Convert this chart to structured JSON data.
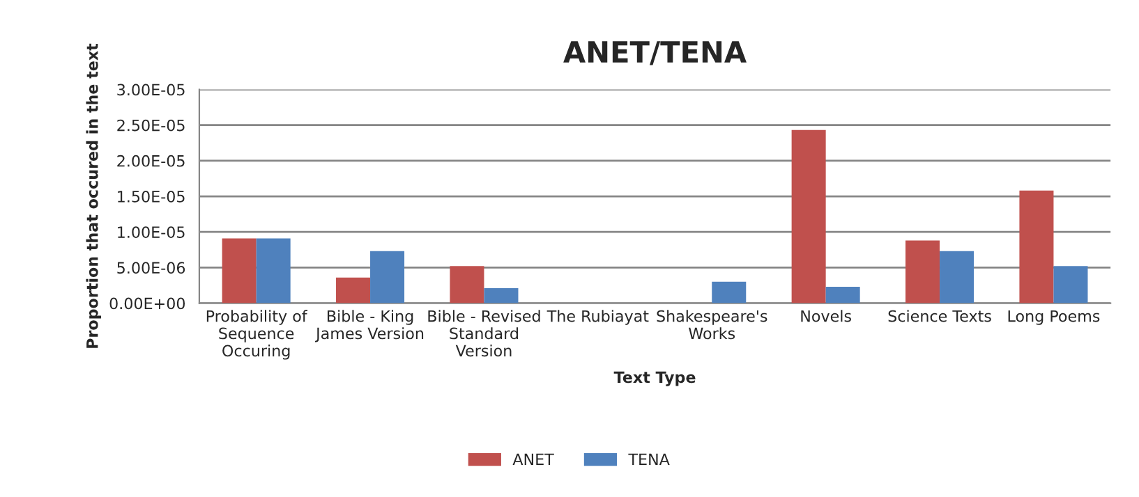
{
  "chart_data": {
    "type": "bar",
    "title": "ANET/TENA",
    "xlabel": "Text Type",
    "ylabel": "Proportion that occured in the text",
    "categories": [
      "Probability of\nSequence\nOccuring",
      "Bible - King\nJames Version",
      "Bible - Revised\nStandard\nVersion",
      "The Rubiayat",
      "Shakespeare's\nWorks",
      "Novels",
      "Science Texts",
      "Long Poems"
    ],
    "series": [
      {
        "name": "ANET",
        "color": "#c0504d",
        "values": [
          9.1e-06,
          3.6e-06,
          5.2e-06,
          0,
          0,
          2.43e-05,
          8.8e-06,
          1.58e-05
        ]
      },
      {
        "name": "TENA",
        "color": "#4f81bd",
        "values": [
          9.1e-06,
          7.3e-06,
          2.1e-06,
          0,
          3e-06,
          2.3e-06,
          7.3e-06,
          5.2e-06
        ]
      }
    ],
    "ylim": [
      0,
      3e-05
    ],
    "yticks": [
      {
        "value": 0,
        "label": "0.00E+00"
      },
      {
        "value": 5e-06,
        "label": "5.00E-06"
      },
      {
        "value": 1e-05,
        "label": "1.00E-05"
      },
      {
        "value": 1.5e-05,
        "label": "1.50E-05"
      },
      {
        "value": 2e-05,
        "label": "2.00E-05"
      },
      {
        "value": 2.5e-05,
        "label": "2.50E-05"
      },
      {
        "value": 3e-05,
        "label": "3.00E-05"
      }
    ],
    "grid": "y",
    "legend": "bottom"
  }
}
